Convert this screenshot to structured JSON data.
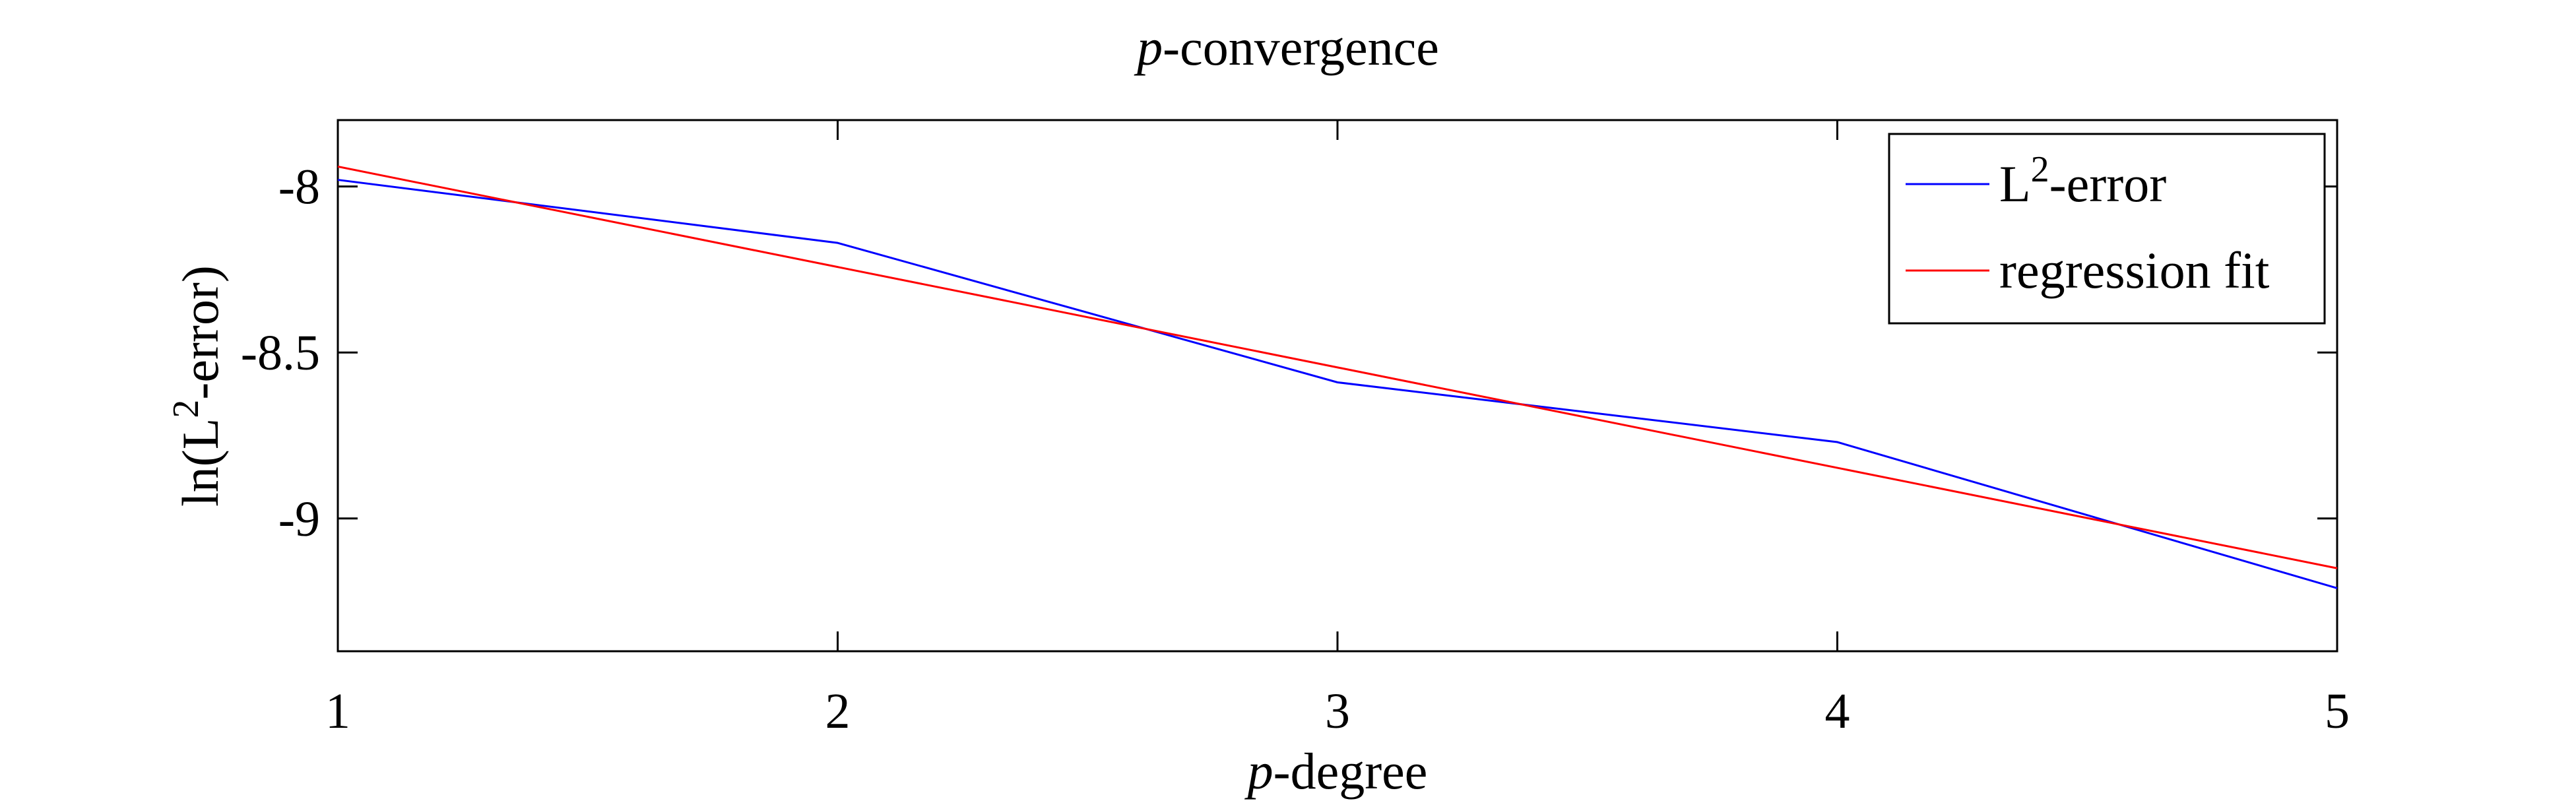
{
  "chart_data": {
    "type": "line",
    "title": "p-convergence",
    "title_parts": {
      "italic": "p",
      "rest": "-convergence"
    },
    "xlabel": "p-degree",
    "xlabel_parts": {
      "italic": "p",
      "rest": "-degree"
    },
    "ylabel": "ln(L2-error)",
    "ylabel_parts": {
      "pre": "ln(L",
      "sup": "2",
      "post": "-error)"
    },
    "xlim": [
      1,
      5
    ],
    "ylim": [
      -9.4,
      -7.8
    ],
    "xticks": [
      1,
      2,
      3,
      4,
      5
    ],
    "xtick_labels": [
      "1",
      "2",
      "3",
      "4",
      "5"
    ],
    "yticks": [
      -8,
      -8.5,
      -9
    ],
    "ytick_labels": [
      "-8",
      "-8.5",
      "-9"
    ],
    "grid": false,
    "legend_position": "top-right",
    "series": [
      {
        "name": "L2-error",
        "legend_parts": {
          "pre": "L",
          "sup": "2",
          "post": "-error"
        },
        "color": "#0000ff",
        "x": [
          1,
          2,
          3,
          4,
          5
        ],
        "y": [
          -7.98,
          -8.17,
          -8.59,
          -8.77,
          -9.21
        ]
      },
      {
        "name": "regression fit",
        "legend_parts": {
          "pre": "regression fit",
          "sup": "",
          "post": ""
        },
        "color": "#ff0000",
        "x": [
          1,
          5
        ],
        "y": [
          -7.94,
          -9.15
        ]
      }
    ]
  }
}
